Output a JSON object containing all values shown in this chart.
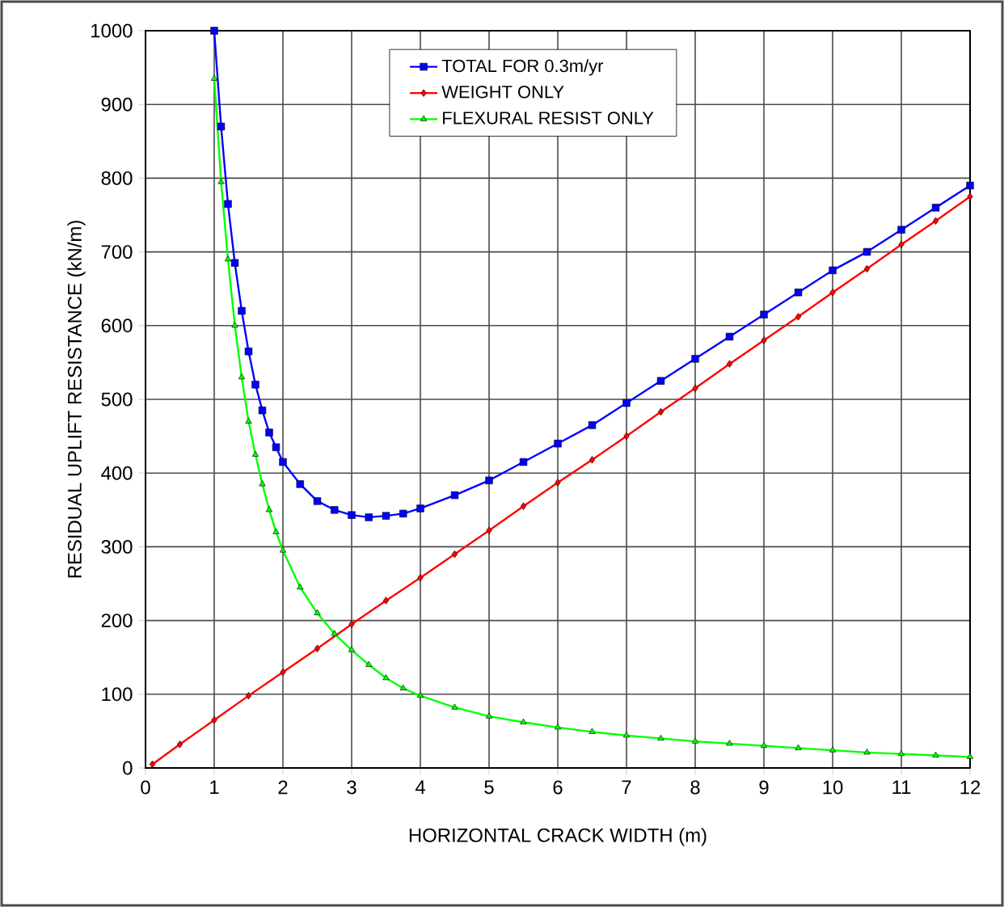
{
  "chart_data": {
    "type": "line",
    "xlabel": "HORIZONTAL CRACK WIDTH (m)",
    "ylabel": "RESIDUAL UPLIFT RESISTANCE (kN/m)",
    "xlim": [
      0,
      12
    ],
    "ylim": [
      0,
      1000
    ],
    "xticks": [
      0,
      1,
      2,
      3,
      4,
      5,
      6,
      7,
      8,
      9,
      10,
      11,
      12
    ],
    "yticks": [
      0,
      100,
      200,
      300,
      400,
      500,
      600,
      700,
      800,
      900,
      1000
    ],
    "grid": true,
    "legend": "top",
    "series": [
      {
        "name": "TOTAL FOR 0.3m/yr",
        "color": "#0000ff",
        "marker": "square",
        "x": [
          1,
          1.1,
          1.2,
          1.3,
          1.4,
          1.5,
          1.6,
          1.7,
          1.8,
          1.9,
          2,
          2.25,
          2.5,
          2.75,
          3,
          3.25,
          3.5,
          3.75,
          4,
          4.5,
          5,
          5.5,
          6,
          6.5,
          7,
          7.5,
          8,
          8.5,
          9,
          9.5,
          10,
          10.5,
          11,
          11.5,
          12
        ],
        "values": [
          1000,
          870,
          765,
          685,
          620,
          565,
          520,
          485,
          455,
          435,
          415,
          385,
          362,
          350,
          343,
          340,
          342,
          345,
          352,
          370,
          390,
          415,
          440,
          465,
          495,
          525,
          555,
          585,
          615,
          645,
          675,
          700,
          730,
          760,
          790
        ]
      },
      {
        "name": "WEIGHT ONLY",
        "color": "#ff0000",
        "marker": "diamond",
        "x": [
          0.1,
          0.5,
          1,
          1.5,
          2,
          2.5,
          3,
          3.5,
          4,
          4.5,
          5,
          5.5,
          6,
          6.5,
          7,
          7.5,
          8,
          8.5,
          9,
          9.5,
          10,
          10.5,
          11,
          11.5,
          12
        ],
        "values": [
          5,
          32,
          65,
          98,
          130,
          162,
          195,
          227,
          258,
          290,
          322,
          355,
          387,
          418,
          450,
          483,
          515,
          548,
          580,
          612,
          645,
          677,
          710,
          742,
          775
        ]
      },
      {
        "name": "FLEXURAL RESIST ONLY",
        "color": "#00ff00",
        "marker": "triangle",
        "x": [
          1,
          1.1,
          1.2,
          1.3,
          1.4,
          1.5,
          1.6,
          1.7,
          1.8,
          1.9,
          2,
          2.25,
          2.5,
          2.75,
          3,
          3.25,
          3.5,
          3.75,
          4,
          4.5,
          5,
          5.5,
          6,
          6.5,
          7,
          7.5,
          8,
          8.5,
          9,
          9.5,
          10,
          10.5,
          11,
          11.5,
          12
        ],
        "values": [
          935,
          795,
          690,
          600,
          530,
          470,
          425,
          385,
          350,
          320,
          295,
          245,
          210,
          182,
          160,
          140,
          122,
          108,
          98,
          82,
          70,
          62,
          55,
          49,
          44,
          40,
          36,
          33,
          30,
          27,
          24,
          21,
          19,
          17,
          15
        ]
      }
    ]
  }
}
